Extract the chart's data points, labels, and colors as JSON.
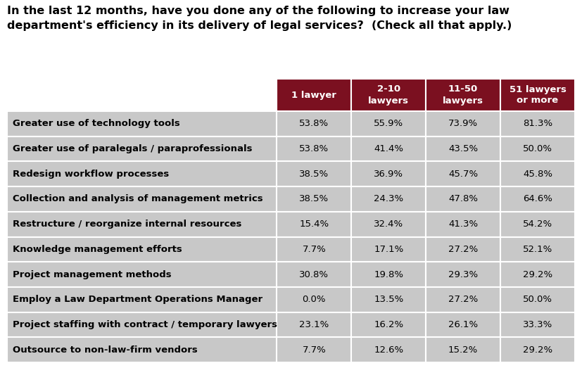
{
  "title": "In the last 12 months, have you done any of the following to increase your law\ndepartment's efficiency in its delivery of legal services?  (Check all that apply.)",
  "col_headers": [
    "1 lawyer",
    "2-10\nlawyers",
    "11-50\nlawyers",
    "51 lawyers\nor more"
  ],
  "row_labels": [
    "Greater use of technology tools",
    "Greater use of paralegals / paraprofessionals",
    "Redesign workflow processes",
    "Collection and analysis of management metrics",
    "Restructure / reorganize internal resources",
    "Knowledge management efforts",
    "Project management methods",
    "Employ a Law Department Operations Manager",
    "Project staffing with contract / temporary lawyers",
    "Outsource to non-law-firm vendors"
  ],
  "data": [
    [
      "53.8%",
      "55.9%",
      "73.9%",
      "81.3%"
    ],
    [
      "53.8%",
      "41.4%",
      "43.5%",
      "50.0%"
    ],
    [
      "38.5%",
      "36.9%",
      "45.7%",
      "45.8%"
    ],
    [
      "38.5%",
      "24.3%",
      "47.8%",
      "64.6%"
    ],
    [
      "15.4%",
      "32.4%",
      "41.3%",
      "54.2%"
    ],
    [
      "7.7%",
      "17.1%",
      "27.2%",
      "52.1%"
    ],
    [
      "30.8%",
      "19.8%",
      "29.3%",
      "29.2%"
    ],
    [
      "0.0%",
      "13.5%",
      "27.2%",
      "50.0%"
    ],
    [
      "23.1%",
      "16.2%",
      "26.1%",
      "33.3%"
    ],
    [
      "7.7%",
      "12.6%",
      "15.2%",
      "29.2%"
    ]
  ],
  "header_bg": "#7B1020",
  "header_fg": "#FFFFFF",
  "row_bg": "#C8C8C8",
  "border_color": "#FFFFFF",
  "fig_bg": "#FFFFFF",
  "title_fontsize": 11.5,
  "header_fontsize": 9.5,
  "cell_fontsize": 9.5,
  "label_fontsize": 9.5,
  "fig_width": 8.27,
  "fig_height": 5.23,
  "dpi": 100
}
